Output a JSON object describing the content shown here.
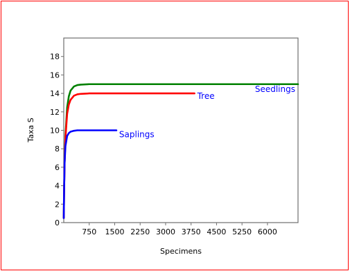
{
  "chart_data": {
    "type": "line",
    "title": "",
    "xlabel": "Specimens",
    "ylabel": "Taxa S",
    "xlim": [
      0,
      6900
    ],
    "ylim": [
      0,
      20
    ],
    "x_ticks": [
      750,
      1500,
      2250,
      3000,
      3750,
      4500,
      5250,
      6000
    ],
    "y_ticks": [
      0,
      2,
      4,
      6,
      8,
      10,
      12,
      14,
      16,
      18
    ],
    "grid": false,
    "legend": "none",
    "series": [
      {
        "name": "Seedlings",
        "color": "#008000",
        "x": [
          0,
          10,
          25,
          50,
          100,
          150,
          200,
          300,
          400,
          500,
          750,
          1000,
          2000,
          4000,
          6900
        ],
        "y": [
          0.5,
          3.5,
          6.5,
          9.5,
          12.5,
          13.7,
          14.3,
          14.75,
          14.9,
          14.95,
          15,
          15,
          15,
          15,
          15
        ]
      },
      {
        "name": "Tree",
        "color": "#ff0000",
        "x": [
          0,
          10,
          25,
          50,
          100,
          150,
          200,
          300,
          400,
          500,
          750,
          1000,
          2000,
          3850
        ],
        "y": [
          0.5,
          3.5,
          6.5,
          9.2,
          11.8,
          12.8,
          13.3,
          13.75,
          13.9,
          13.95,
          14,
          14,
          14,
          14
        ]
      },
      {
        "name": "Saplings",
        "color": "#0000ff",
        "x": [
          0,
          10,
          25,
          50,
          100,
          150,
          200,
          300,
          400,
          500,
          750,
          1000,
          1550
        ],
        "y": [
          0.5,
          3.5,
          6.5,
          8.3,
          9.4,
          9.7,
          9.85,
          9.95,
          10,
          10,
          10,
          10,
          10
        ]
      }
    ],
    "series_label_color": "#0000ff"
  }
}
